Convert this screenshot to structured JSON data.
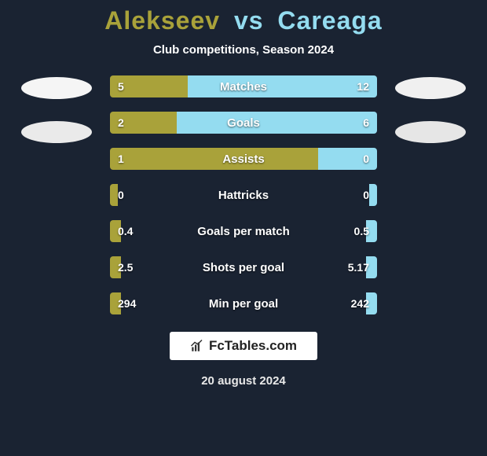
{
  "title": {
    "player1": "Alekseev",
    "vs": "vs",
    "player2": "Careaga",
    "player1_color": "#a9a23a",
    "player2_color": "#94dcf0"
  },
  "subtitle": "Club competitions, Season 2024",
  "background_color": "#1a2332",
  "bar_colors": {
    "left": "#a9a23a",
    "right": "#94dcf0"
  },
  "logos": {
    "left": [
      {
        "bg": "#f5f5f5"
      },
      {
        "bg": "#eaeaea"
      }
    ],
    "right": [
      {
        "bg": "#f0f0f0"
      },
      {
        "bg": "#e6e6e6"
      }
    ]
  },
  "stats": [
    {
      "label": "Matches",
      "left_val": "5",
      "right_val": "12",
      "left_pct": 29,
      "right_pct": 71
    },
    {
      "label": "Goals",
      "left_val": "2",
      "right_val": "6",
      "left_pct": 25,
      "right_pct": 75
    },
    {
      "label": "Assists",
      "left_val": "1",
      "right_val": "0",
      "left_pct": 78,
      "right_pct": 22
    },
    {
      "label": "Hattricks",
      "left_val": "0",
      "right_val": "0",
      "left_pct": 3,
      "right_pct": 3
    },
    {
      "label": "Goals per match",
      "left_val": "0.4",
      "right_val": "0.5",
      "left_pct": 4,
      "right_pct": 4
    },
    {
      "label": "Shots per goal",
      "left_val": "2.5",
      "right_val": "5.17",
      "left_pct": 4,
      "right_pct": 4
    },
    {
      "label": "Min per goal",
      "left_val": "294",
      "right_val": "242",
      "left_pct": 4,
      "right_pct": 4
    }
  ],
  "watermark": "FcTables.com",
  "date": "20 august 2024"
}
